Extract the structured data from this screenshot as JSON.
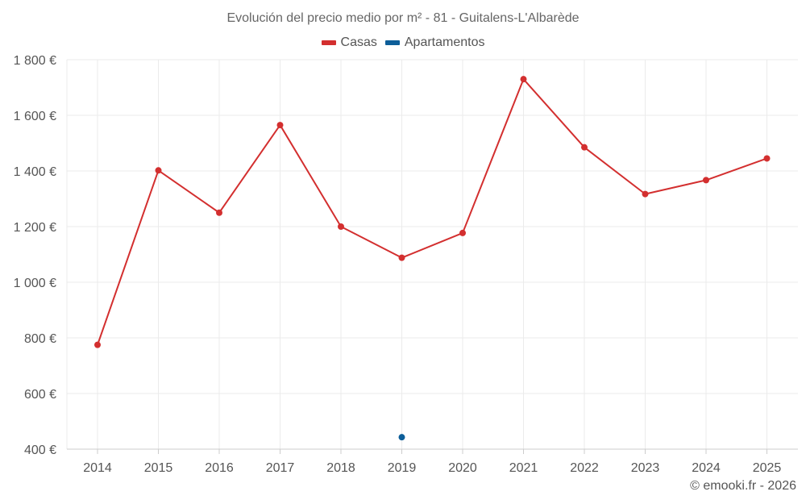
{
  "chart_data": {
    "type": "line",
    "title": "Evolución del precio medio por m² - 81 - Guitalens-L'Albarède",
    "categories": [
      "2014",
      "2015",
      "2016",
      "2017",
      "2018",
      "2019",
      "2020",
      "2021",
      "2022",
      "2023",
      "2024",
      "2025"
    ],
    "y_ticks": [
      400,
      600,
      800,
      1000,
      1200,
      1400,
      1600,
      1800
    ],
    "y_tick_labels": [
      "400 €",
      "600 €",
      "800 €",
      "1 000 €",
      "1 200 €",
      "1 400 €",
      "1 600 €",
      "1 800 €"
    ],
    "ylim": [
      400,
      1800
    ],
    "grid": true,
    "legend_position": "top-center",
    "series": [
      {
        "name": "Casas",
        "color": "#d32f2f",
        "values": [
          775,
          1402,
          1250,
          1565,
          1200,
          1088,
          1177,
          1730,
          1485,
          1317,
          1367,
          1445
        ]
      },
      {
        "name": "Apartamentos",
        "color": "#0d5e99",
        "values": [
          null,
          null,
          null,
          null,
          null,
          443,
          null,
          null,
          null,
          null,
          null,
          null
        ]
      }
    ]
  },
  "credit": "© emooki.fr - 2026"
}
